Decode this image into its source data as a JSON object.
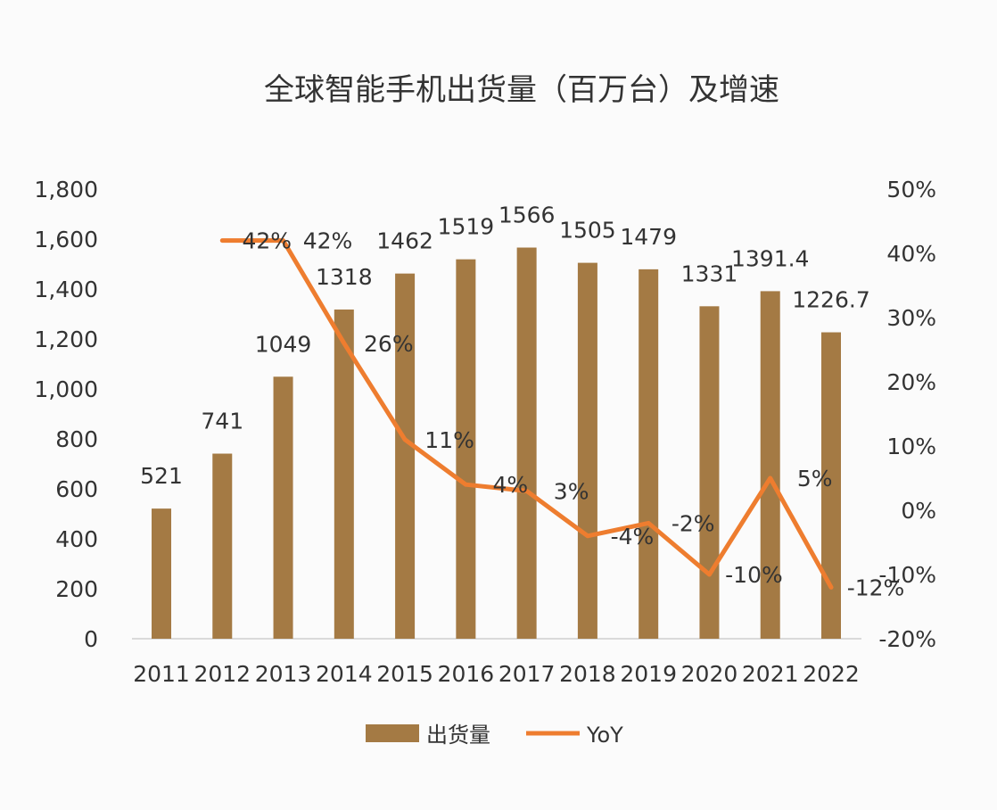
{
  "chart_data": {
    "type": "bar+line",
    "title": "全球智能手机出货量（百万台）及增速",
    "categories": [
      "2011",
      "2012",
      "2013",
      "2014",
      "2015",
      "2016",
      "2017",
      "2018",
      "2019",
      "2020",
      "2021",
      "2022"
    ],
    "series": [
      {
        "name": "出货量",
        "type": "bar",
        "axis": "left",
        "color": "#a47a44",
        "values": [
          521,
          741,
          1049,
          1318,
          1462,
          1519,
          1566,
          1505,
          1479,
          1331,
          1391.4,
          1226.7
        ],
        "labels": [
          "521",
          "741",
          "1049",
          "1318",
          "1462",
          "1519",
          "1566",
          "1505",
          "1479",
          "1331",
          "1391.4",
          "1226.7"
        ]
      },
      {
        "name": "YoY",
        "type": "line",
        "axis": "right",
        "color": "#ee7d2f",
        "values": [
          null,
          42,
          42,
          26,
          11,
          4,
          3,
          -4,
          -2,
          -10,
          5,
          -12
        ],
        "labels": [
          null,
          "42%",
          "42%",
          "26%",
          "11%",
          "4%",
          "3%",
          "-4%",
          "-2%",
          "-10%",
          "5%",
          "-12%"
        ]
      }
    ],
    "left_axis": {
      "range": [
        0,
        1800
      ],
      "ticks": [
        "0",
        "200",
        "400",
        "600",
        "800",
        "1,000",
        "1,200",
        "1,400",
        "1,600",
        "1,800"
      ]
    },
    "right_axis": {
      "range": [
        -20,
        50
      ],
      "ticks": [
        "-20%",
        "-10%",
        "0%",
        "10%",
        "20%",
        "30%",
        "40%",
        "50%"
      ]
    },
    "grid": false,
    "legend": {
      "placement": "bottom",
      "items": [
        "出货量",
        "YoY"
      ]
    }
  }
}
